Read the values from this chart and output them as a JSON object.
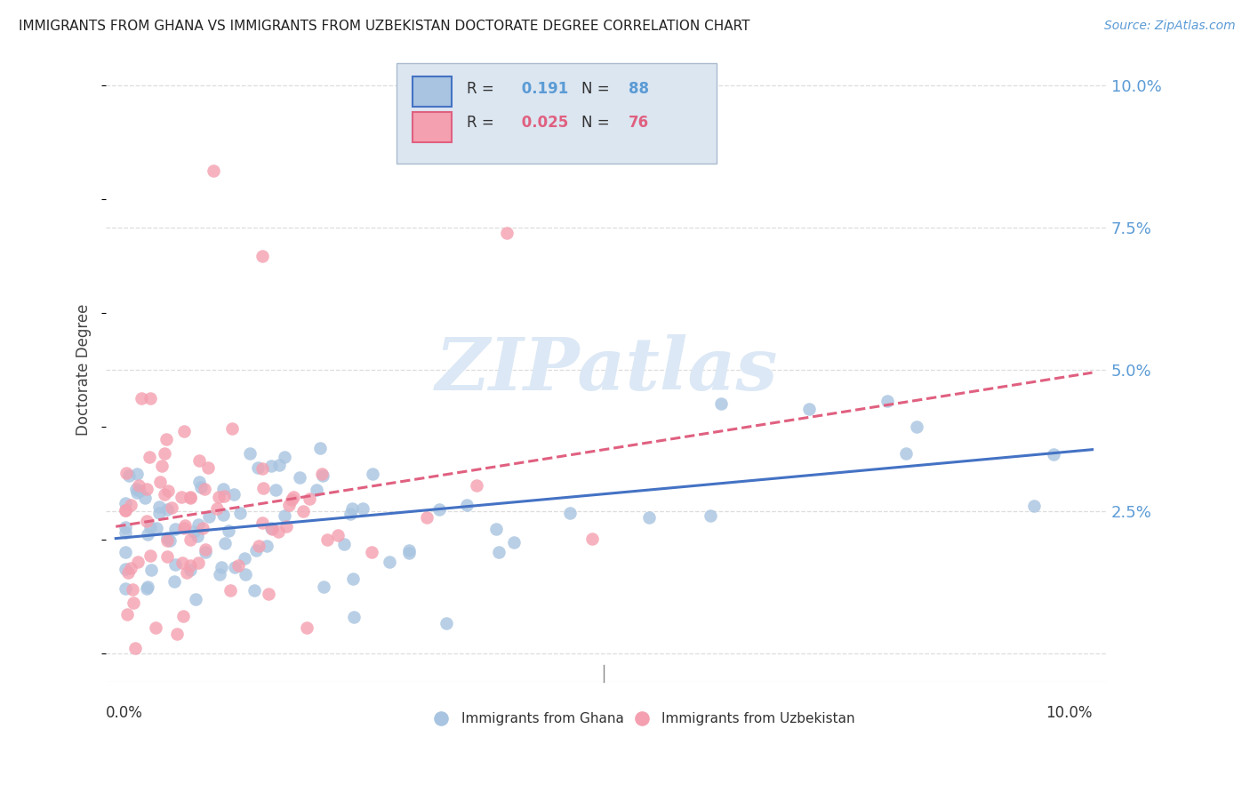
{
  "title": "IMMIGRANTS FROM GHANA VS IMMIGRANTS FROM UZBEKISTAN DOCTORATE DEGREE CORRELATION CHART",
  "source": "Source: ZipAtlas.com",
  "ylabel": "Doctorate Degree",
  "ghana_R": 0.191,
  "ghana_N": 88,
  "uzbekistan_R": 0.025,
  "uzbekistan_N": 76,
  "ghana_color": "#a8c4e0",
  "uzbekistan_color": "#f4a0b0",
  "ghana_line_color": "#4472c4",
  "uzbekistan_line_color": "#e06080",
  "axis_label_color": "#5b9bd5",
  "title_color": "#222222",
  "watermark_color": "#dce8f5",
  "legend_bg_color": "#dce6f1",
  "legend_border_color": "#aabbd0",
  "grid_color": "#dddddd",
  "xlim": [
    0.0,
    0.1
  ],
  "ylim": [
    0.0,
    0.1
  ],
  "yticks": [
    0.0,
    0.025,
    0.05,
    0.075,
    0.1
  ],
  "ytick_labels": [
    "",
    "2.5%",
    "5.0%",
    "7.5%",
    "10.0%"
  ]
}
